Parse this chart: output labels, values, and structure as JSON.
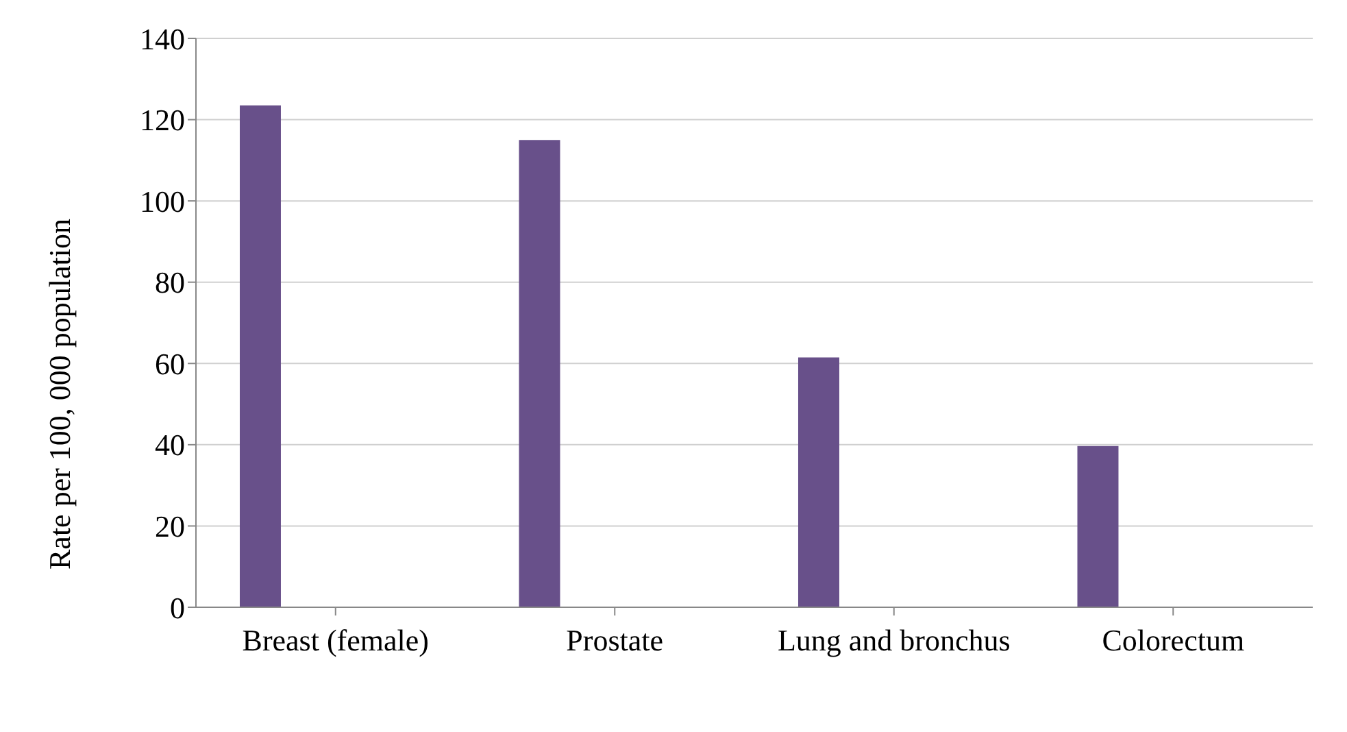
{
  "chart_data": {
    "type": "bar",
    "ylabel": "Rate per 100, 000 population",
    "categories": [
      "Breast (female)",
      "Prostate",
      "Lung and bronchus",
      "Colorectum"
    ],
    "series": [
      {
        "color": "#68508a",
        "values": [
          123.5,
          115,
          61.5,
          39.7
        ]
      }
    ],
    "ylim": [
      0,
      140
    ],
    "yticks": [
      0,
      20,
      40,
      60,
      80,
      100,
      120,
      140
    ],
    "grid": "y",
    "legend": false
  }
}
